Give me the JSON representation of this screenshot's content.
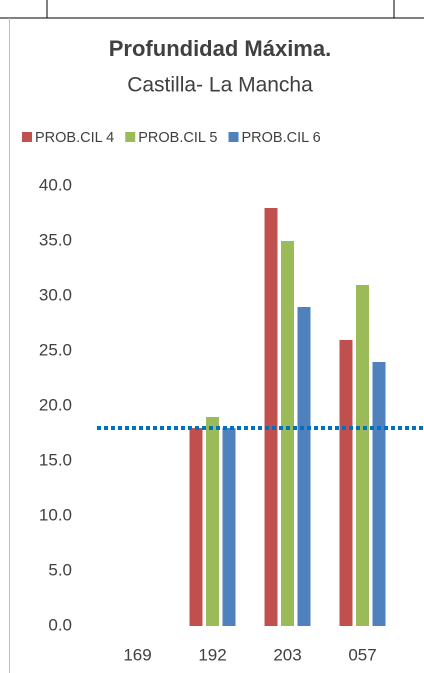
{
  "chart_data": {
    "type": "bar",
    "title": "Profundidad Máxima.",
    "subtitle": "Castilla- La Mancha",
    "categories": [
      "169",
      "192",
      "203",
      "057"
    ],
    "series": [
      {
        "name": "PROB.CIL 4",
        "color": "#c0504d",
        "values": [
          null,
          18,
          38,
          26
        ]
      },
      {
        "name": "PROB.CIL 5",
        "color": "#9bbb59",
        "values": [
          null,
          19,
          35,
          31
        ]
      },
      {
        "name": "PROB.CIL 6",
        "color": "#4f81bd",
        "values": [
          null,
          18,
          29,
          24
        ]
      }
    ],
    "ylim": [
      0,
      40
    ],
    "yticks": [
      {
        "value": 0,
        "label": "0.0"
      },
      {
        "value": 5,
        "label": "5.0"
      },
      {
        "value": 10,
        "label": "10.0"
      },
      {
        "value": 15,
        "label": "15.0"
      },
      {
        "value": 20,
        "label": "20.0"
      },
      {
        "value": 25,
        "label": "25.0"
      },
      {
        "value": 30,
        "label": "30.0"
      },
      {
        "value": 35,
        "label": "35.0"
      },
      {
        "value": 40,
        "label": "40.0"
      }
    ],
    "reference_line": {
      "value": 18,
      "color": "#0070c0"
    },
    "legend": "top",
    "grid": false
  }
}
